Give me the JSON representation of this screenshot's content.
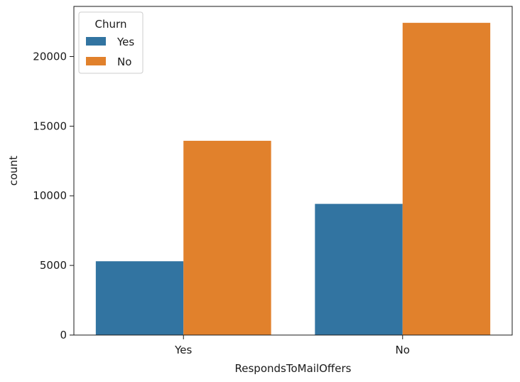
{
  "chart_data": {
    "type": "bar",
    "title": "",
    "xlabel": "RespondsToMailOffers",
    "ylabel": "count",
    "categories": [
      "Yes",
      "No"
    ],
    "series": [
      {
        "name": "Yes",
        "color": "#3274a1",
        "values": [
          5300,
          9420
        ]
      },
      {
        "name": "No",
        "color": "#e1812c",
        "values": [
          13950,
          22420
        ]
      }
    ],
    "ylim": [
      0,
      23600
    ],
    "yticks": [
      0,
      5000,
      10000,
      15000,
      20000
    ],
    "grid": false,
    "legend": {
      "title": "Churn",
      "placement": "top-left"
    }
  }
}
